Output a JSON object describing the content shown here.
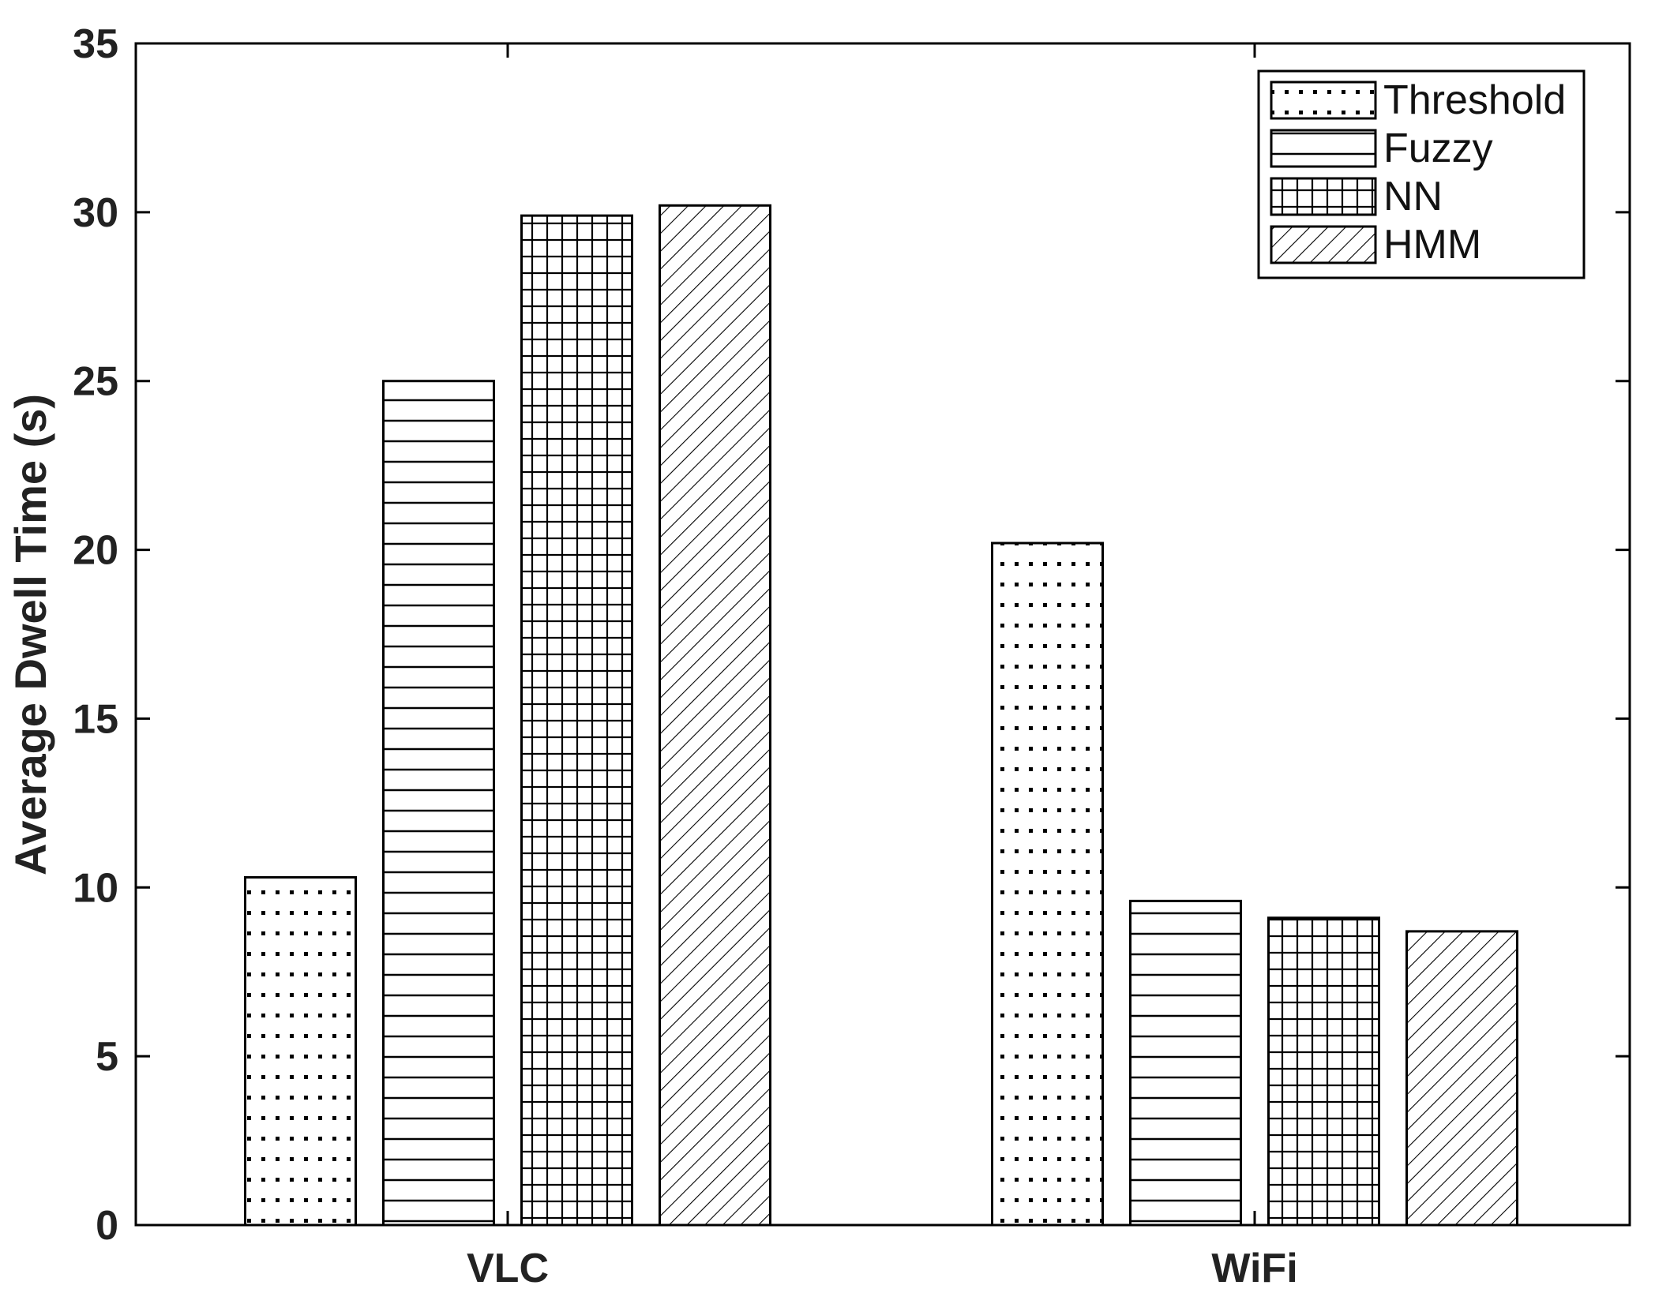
{
  "chart_data": {
    "type": "bar",
    "title": "",
    "xlabel": "",
    "ylabel": "Average Dwell Time (s)",
    "categories": [
      "VLC",
      "WiFi"
    ],
    "series": [
      {
        "name": "Threshold",
        "values": [
          10.3,
          20.2
        ],
        "pattern": "dots"
      },
      {
        "name": "Fuzzy",
        "values": [
          25.0,
          9.6
        ],
        "pattern": "horizontal-lines"
      },
      {
        "name": "NN",
        "values": [
          29.9,
          9.1
        ],
        "pattern": "grid"
      },
      {
        "name": "HMM",
        "values": [
          30.2,
          8.7
        ],
        "pattern": "diagonal-lines"
      }
    ],
    "ylim": [
      0,
      35
    ],
    "yticks": [
      0,
      5,
      10,
      15,
      20,
      25,
      30,
      35
    ],
    "grid": false,
    "legend_position": "top-right",
    "colors": {
      "bar_fill": "#ffffff",
      "stroke": "#000000",
      "text": "#222222"
    }
  }
}
